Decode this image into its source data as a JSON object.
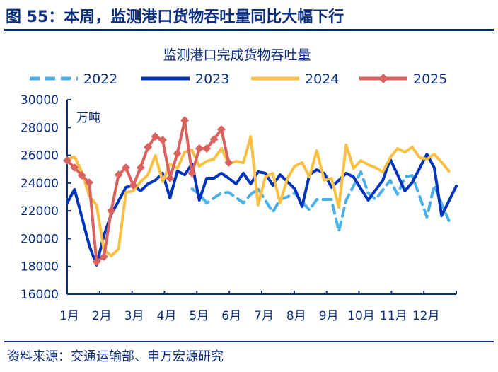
{
  "figure_title": "图 55：本周，监测港口货物吞吐量同比大幅下行",
  "source": "资料来源：交通运输部、申万宏源研究",
  "chart_data": {
    "type": "line",
    "title": "监测港口完成货物吞吐量",
    "unit_label": "万吨",
    "xlabel": "",
    "ylabel": "",
    "x_unit": "week",
    "xlim": [
      1,
      54
    ],
    "ylim": [
      16000,
      30000
    ],
    "yticks": [
      16000,
      18000,
      20000,
      22000,
      24000,
      26000,
      28000,
      30000
    ],
    "x_tick_labels": [
      "1月",
      "2月",
      "3月",
      "4月",
      "5月",
      "6月",
      "7月",
      "8月",
      "9月",
      "10月",
      "11月",
      "12月"
    ],
    "grid": false,
    "legend": "top",
    "series": [
      {
        "name": "2022",
        "color": "#4bb0e8",
        "style": "dashed",
        "x": [
          18,
          19,
          20,
          22,
          23,
          25,
          26,
          27,
          29,
          30,
          31,
          32,
          34,
          35,
          36,
          37,
          38,
          39,
          41,
          42,
          43,
          45,
          46,
          47,
          48,
          50,
          51,
          52,
          53
        ],
        "y": [
          23590,
          23200,
          22570,
          23280,
          23330,
          22570,
          23180,
          23590,
          21910,
          22820,
          23000,
          23280,
          22060,
          22820,
          22820,
          22820,
          20530,
          22770,
          24810,
          23280,
          22820,
          24200,
          23180,
          24450,
          24550,
          21550,
          23840,
          22500,
          21300
        ]
      },
      {
        "name": "2023",
        "color": "#0033bb",
        "style": "solid",
        "x": [
          1,
          2,
          3,
          4,
          5,
          6,
          7,
          8,
          9,
          10,
          11,
          12,
          13,
          14,
          15,
          16,
          17,
          18,
          19,
          20,
          21,
          22,
          23,
          24,
          25,
          26,
          27,
          28,
          29,
          30,
          31,
          32,
          33,
          34,
          35,
          36,
          37,
          38,
          39,
          40,
          41,
          42,
          43,
          44,
          45,
          46,
          47,
          48,
          49,
          50,
          51,
          52,
          53,
          54
        ],
        "y": [
          22570,
          23540,
          21550,
          19510,
          18090,
          20230,
          21750,
          22720,
          23690,
          23840,
          23430,
          23940,
          24200,
          24710,
          22920,
          24860,
          24600,
          25370,
          22770,
          24350,
          24350,
          24710,
          24350,
          23940,
          24710,
          23940,
          24810,
          24710,
          23840,
          24600,
          24100,
          23590,
          22310,
          24600,
          24960,
          24710,
          23690,
          24200,
          24710,
          24450,
          23590,
          22770,
          23490,
          24200,
          25720,
          24600,
          23430,
          24040,
          25060,
          26080,
          25110,
          21650,
          22720,
          23790
        ]
      },
      {
        "name": "2024",
        "color": "#f9c043",
        "style": "solid",
        "x": [
          1,
          2,
          3,
          4,
          5,
          6,
          7,
          8,
          9,
          10,
          11,
          12,
          13,
          14,
          15,
          16,
          17,
          18,
          19,
          20,
          21,
          22,
          23,
          24,
          25,
          26,
          27,
          28,
          29,
          30,
          31,
          32,
          33,
          34,
          35,
          36,
          37,
          38,
          39,
          40,
          41,
          42,
          43,
          44,
          45,
          46,
          47,
          48,
          49,
          50,
          51,
          52,
          53
        ],
        "y": [
          25730,
          25880,
          24810,
          23080,
          22420,
          19210,
          18750,
          19260,
          23330,
          23430,
          24100,
          24600,
          25980,
          24100,
          25370,
          25060,
          26230,
          26390,
          25220,
          25570,
          25730,
          26490,
          25370,
          25570,
          25470,
          27350,
          22420,
          24450,
          24710,
          22570,
          24350,
          25220,
          25470,
          24450,
          26340,
          24200,
          24350,
          22260,
          26740,
          25060,
          25620,
          25320,
          25110,
          24810,
          25830,
          26490,
          26230,
          26590,
          25830,
          25730,
          26080,
          25500,
          24860
        ]
      },
      {
        "name": "2025",
        "color": "#d9625e",
        "style": "solid-diamond",
        "x": [
          1,
          2,
          3,
          4,
          5,
          6,
          7,
          8,
          9,
          10,
          11,
          12,
          13,
          14,
          15,
          16,
          17,
          18,
          19,
          20,
          21,
          22,
          23
        ],
        "y": [
          25620,
          25110,
          24550,
          24040,
          18340,
          18700,
          22010,
          24600,
          25110,
          23840,
          25110,
          26590,
          27350,
          27100,
          24350,
          26130,
          28520,
          24710,
          26490,
          26490,
          27150,
          27860,
          25470
        ]
      }
    ]
  }
}
